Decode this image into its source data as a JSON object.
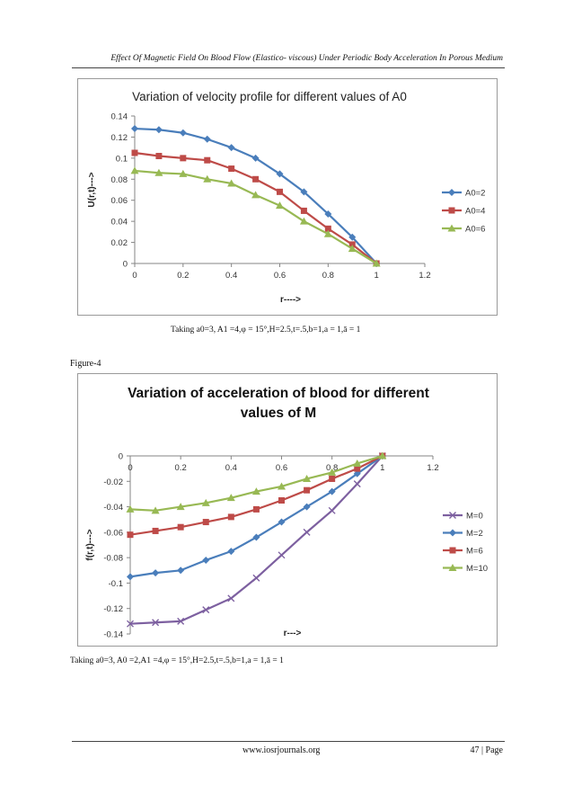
{
  "header": {
    "title": "Effect Of Magnetic Field On Blood Flow (Elastico- viscous) Under Periodic Body Acceleration In Porous Medium"
  },
  "figure_label": "Figure-4",
  "caption1": "Taking a0=3, A1 =4,φ = 15°,H=2.5,t=.5,b=1,a = 1,ā = 1",
  "caption2": "Taking a0=3, A0 =2,A1 =4,φ = 15°,H=2.5,t=.5,b=1,a = 1,ā = 1",
  "footer": {
    "url": "www.iosrjournals.org",
    "page": "47 | Page"
  },
  "chart_data": [
    {
      "type": "line",
      "title": "Variation of velocity profile for different values of A0",
      "xlabel": "r---->",
      "ylabel": "U(r,t)--->",
      "xlim": [
        0,
        1.2
      ],
      "ylim": [
        0,
        0.14
      ],
      "xticks": [
        "0",
        "0.2",
        "0.4",
        "0.6",
        "0.8",
        "1",
        "1.2"
      ],
      "yticks": [
        "0",
        "0.02",
        "0.04",
        "0.06",
        "0.08",
        "0.1",
        "0.12",
        "0.14"
      ],
      "x": [
        0,
        0.1,
        0.2,
        0.3,
        0.4,
        0.5,
        0.6,
        0.7,
        0.8,
        0.9,
        1.0
      ],
      "legend_position": "right",
      "grid": false,
      "series": [
        {
          "name": "A0=2",
          "color": "#4a7ebb",
          "marker": "diamond",
          "values": [
            0.128,
            0.127,
            0.124,
            0.118,
            0.11,
            0.1,
            0.085,
            0.068,
            0.047,
            0.025,
            0
          ]
        },
        {
          "name": "A0=4",
          "color": "#be4b48",
          "marker": "square",
          "values": [
            0.105,
            0.102,
            0.1,
            0.098,
            0.09,
            0.08,
            0.068,
            0.05,
            0.033,
            0.018,
            0
          ]
        },
        {
          "name": "A0=6",
          "color": "#98b954",
          "marker": "triangle",
          "values": [
            0.088,
            0.086,
            0.085,
            0.08,
            0.076,
            0.065,
            0.055,
            0.04,
            0.028,
            0.014,
            0
          ]
        }
      ]
    },
    {
      "type": "line",
      "title": "Variation of acceleration of blood for different values of M",
      "xlabel": "r--->",
      "ylabel": "f(r,t)--->",
      "xlim": [
        0,
        1.2
      ],
      "ylim": [
        -0.14,
        0
      ],
      "xticks": [
        "0",
        "0.2",
        "0.4",
        "0.6",
        "0.8",
        "1",
        "1.2"
      ],
      "yticks": [
        "0",
        "-0.02",
        "-0.04",
        "-0.06",
        "-0.08",
        "-0.1",
        "-0.12",
        "-0.14"
      ],
      "x": [
        0,
        0.1,
        0.2,
        0.3,
        0.4,
        0.5,
        0.6,
        0.7,
        0.8,
        0.9,
        1.0
      ],
      "legend_position": "right",
      "grid": false,
      "series": [
        {
          "name": "M=0",
          "color": "#7d60a0",
          "marker": "x",
          "values": [
            -0.132,
            -0.131,
            -0.13,
            -0.121,
            -0.112,
            -0.096,
            -0.078,
            -0.06,
            -0.043,
            -0.022,
            0
          ]
        },
        {
          "name": "M=2",
          "color": "#4a7ebb",
          "marker": "diamond",
          "values": [
            -0.095,
            -0.092,
            -0.09,
            -0.082,
            -0.075,
            -0.064,
            -0.052,
            -0.04,
            -0.028,
            -0.014,
            0
          ]
        },
        {
          "name": "M=6",
          "color": "#be4b48",
          "marker": "square",
          "values": [
            -0.062,
            -0.059,
            -0.056,
            -0.052,
            -0.048,
            -0.042,
            -0.035,
            -0.027,
            -0.018,
            -0.01,
            0
          ]
        },
        {
          "name": "M=10",
          "color": "#98b954",
          "marker": "triangle",
          "values": [
            -0.042,
            -0.043,
            -0.04,
            -0.037,
            -0.033,
            -0.028,
            -0.024,
            -0.018,
            -0.013,
            -0.006,
            0
          ]
        }
      ]
    }
  ]
}
